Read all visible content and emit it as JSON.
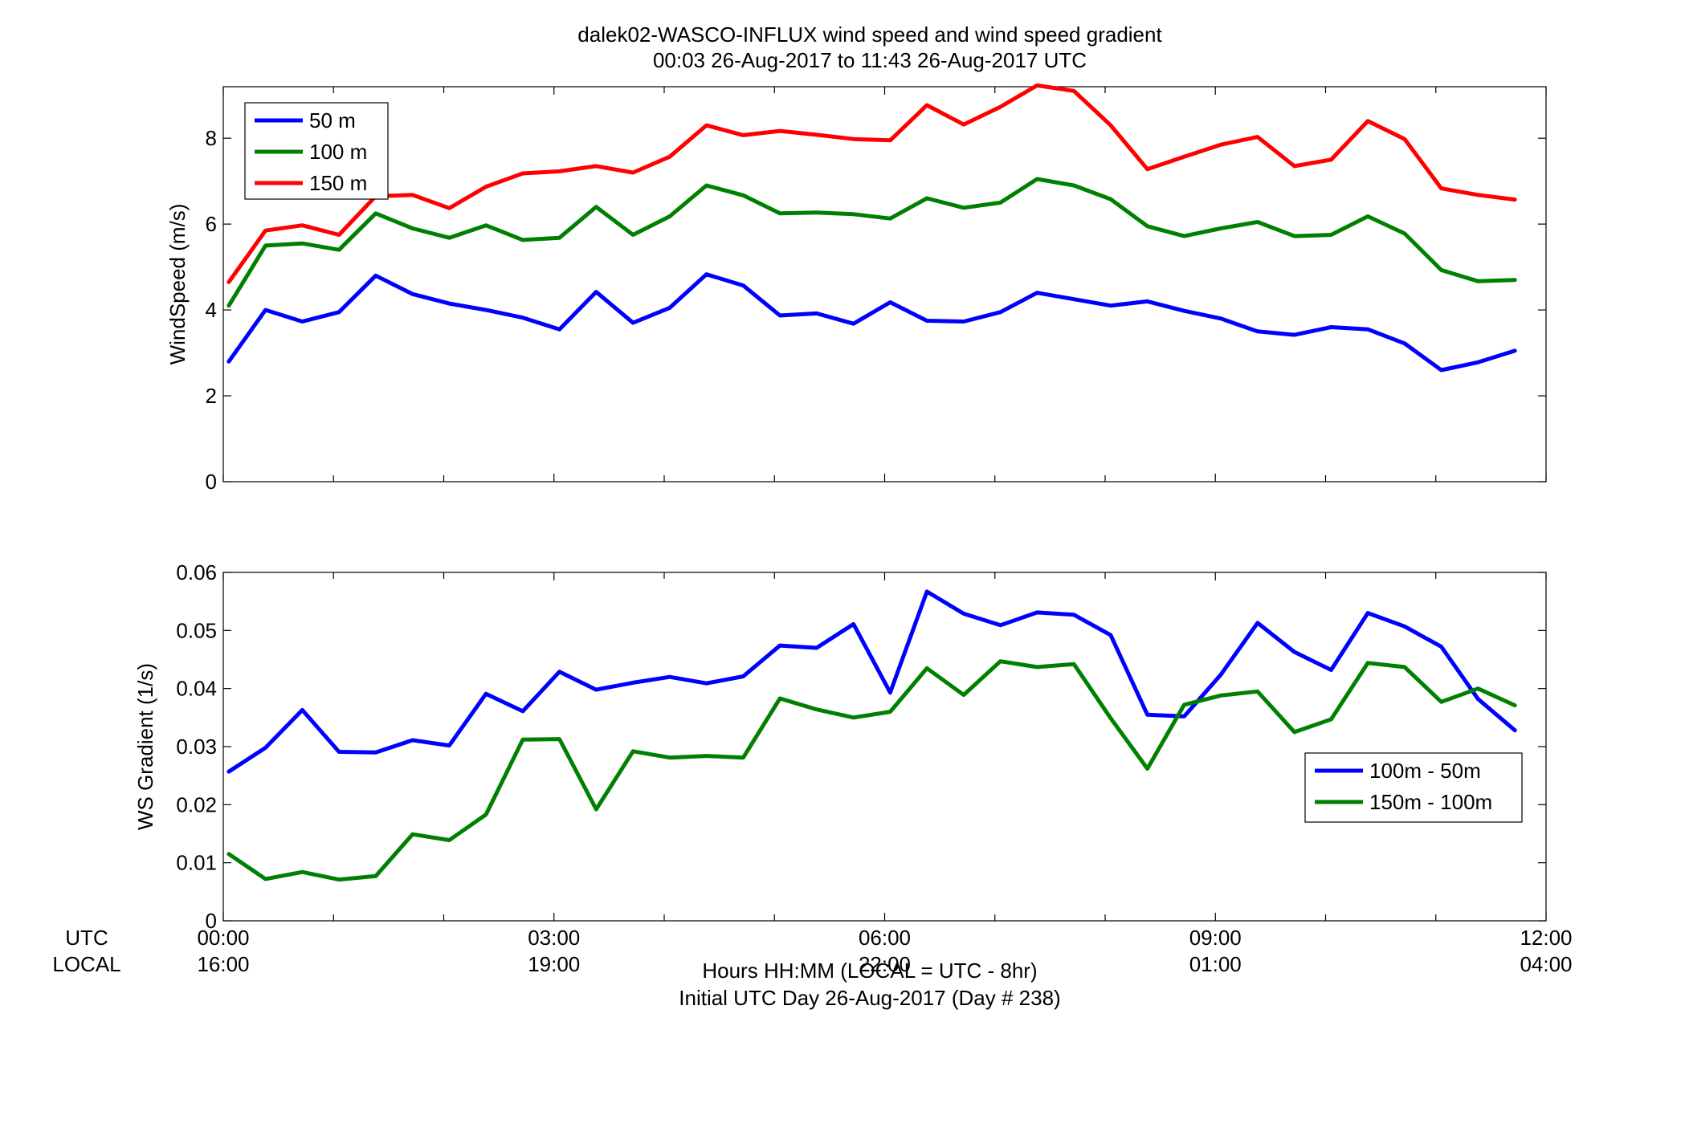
{
  "title": {
    "line1": "dalek02-WASCO-INFLUX  wind speed and wind speed gradient",
    "line2": "00:03 26-Aug-2017 to 11:43 26-Aug-2017  UTC"
  },
  "xaxis": {
    "row_label_utc": "UTC",
    "row_label_local": "LOCAL",
    "utc_ticks": [
      "00:00",
      "03:00",
      "06:00",
      "09:00",
      "12:00"
    ],
    "local_ticks": [
      "16:00",
      "19:00",
      "22:00",
      "01:00",
      "04:00"
    ],
    "xlabel_line1": "Hours HH:MM  (LOCAL = UTC - 8hr)",
    "xlabel_line2": "Initial UTC Day 26-Aug-2017 (Day # 238)"
  },
  "colors": {
    "blue": "#0000ff",
    "green": "#008000",
    "red": "#ff0000"
  },
  "chart_data": [
    {
      "type": "line",
      "ylabel": "WindSpeed (m/s)",
      "xlim": [
        0,
        12
      ],
      "ylim": [
        0,
        9.2
      ],
      "yticks": [
        0,
        2,
        4,
        6,
        8
      ],
      "ytick_labels": [
        "0",
        "2",
        "4",
        "6",
        "8"
      ],
      "legend_position": "top-left",
      "x": [
        0.05,
        0.383,
        0.717,
        1.05,
        1.383,
        1.717,
        2.05,
        2.383,
        2.717,
        3.05,
        3.383,
        3.717,
        4.05,
        4.383,
        4.717,
        5.05,
        5.383,
        5.717,
        6.05,
        6.383,
        6.717,
        7.05,
        7.383,
        7.717,
        8.05,
        8.383,
        8.717,
        9.05,
        9.383,
        9.717,
        10.05,
        10.383,
        10.717,
        11.05,
        11.383,
        11.717
      ],
      "series": [
        {
          "name": "50 m",
          "color": "blue",
          "values": [
            2.8,
            4.0,
            3.73,
            3.95,
            4.8,
            4.37,
            4.15,
            4.0,
            3.82,
            3.55,
            4.42,
            3.7,
            4.05,
            4.83,
            4.57,
            3.87,
            3.92,
            3.68,
            4.18,
            3.75,
            3.73,
            3.95,
            4.4,
            4.25,
            4.1,
            4.2,
            3.98,
            3.8,
            3.5,
            3.42,
            3.6,
            3.55,
            3.22,
            2.6,
            2.78,
            3.05
          ]
        },
        {
          "name": "100 m",
          "color": "green",
          "values": [
            4.1,
            5.5,
            5.55,
            5.4,
            6.25,
            5.9,
            5.68,
            5.97,
            5.63,
            5.68,
            6.4,
            5.75,
            6.18,
            6.9,
            6.67,
            6.25,
            6.27,
            6.23,
            6.13,
            6.6,
            6.38,
            6.5,
            7.05,
            6.9,
            6.58,
            5.95,
            5.72,
            5.9,
            6.05,
            5.72,
            5.75,
            6.18,
            5.78,
            4.93,
            4.67,
            4.7
          ]
        },
        {
          "name": "150 m",
          "color": "red",
          "values": [
            4.65,
            5.85,
            5.97,
            5.75,
            6.65,
            6.68,
            6.37,
            6.87,
            7.18,
            7.23,
            7.35,
            7.2,
            7.57,
            8.3,
            8.07,
            8.17,
            8.08,
            7.98,
            7.95,
            8.77,
            8.32,
            8.73,
            9.23,
            9.1,
            8.3,
            7.28,
            7.57,
            7.85,
            8.03,
            7.35,
            7.5,
            8.4,
            7.98,
            6.83,
            6.68,
            6.57
          ]
        }
      ]
    },
    {
      "type": "line",
      "ylabel": "WS Gradient (1/s)",
      "xlim": [
        0,
        12
      ],
      "ylim": [
        0,
        0.06
      ],
      "yticks": [
        0,
        0.01,
        0.02,
        0.03,
        0.04,
        0.05,
        0.06
      ],
      "ytick_labels": [
        "0",
        "0.01",
        "0.02",
        "0.03",
        "0.04",
        "0.05",
        "0.06"
      ],
      "legend_position": "right",
      "x": [
        0.05,
        0.383,
        0.717,
        1.05,
        1.383,
        1.717,
        2.05,
        2.383,
        2.717,
        3.05,
        3.383,
        3.717,
        4.05,
        4.383,
        4.717,
        5.05,
        5.383,
        5.717,
        6.05,
        6.383,
        6.717,
        7.05,
        7.383,
        7.717,
        8.05,
        8.383,
        8.717,
        9.05,
        9.383,
        9.717,
        10.05,
        10.383,
        10.717,
        11.05,
        11.383,
        11.717
      ],
      "series": [
        {
          "name": "100m - 50m",
          "color": "blue",
          "values": [
            0.0257,
            0.0298,
            0.0363,
            0.0291,
            0.029,
            0.0311,
            0.0302,
            0.0391,
            0.0361,
            0.0429,
            0.0398,
            0.041,
            0.042,
            0.0409,
            0.0421,
            0.0474,
            0.047,
            0.0511,
            0.0393,
            0.0567,
            0.0529,
            0.0509,
            0.0531,
            0.0527,
            0.0492,
            0.0355,
            0.0352,
            0.0424,
            0.0513,
            0.0463,
            0.0432,
            0.053,
            0.0507,
            0.0472,
            0.0382,
            0.0328
          ]
        },
        {
          "name": "150m - 100m",
          "color": "green",
          "values": [
            0.0115,
            0.0072,
            0.0084,
            0.0071,
            0.0077,
            0.0149,
            0.0139,
            0.0183,
            0.0312,
            0.0313,
            0.0192,
            0.0292,
            0.0281,
            0.0284,
            0.0281,
            0.0383,
            0.0364,
            0.035,
            0.036,
            0.0435,
            0.0389,
            0.0447,
            0.0437,
            0.0442,
            0.0349,
            0.0262,
            0.0372,
            0.0388,
            0.0395,
            0.0325,
            0.0347,
            0.0444,
            0.0437,
            0.0377,
            0.04,
            0.0371
          ]
        }
      ]
    }
  ]
}
